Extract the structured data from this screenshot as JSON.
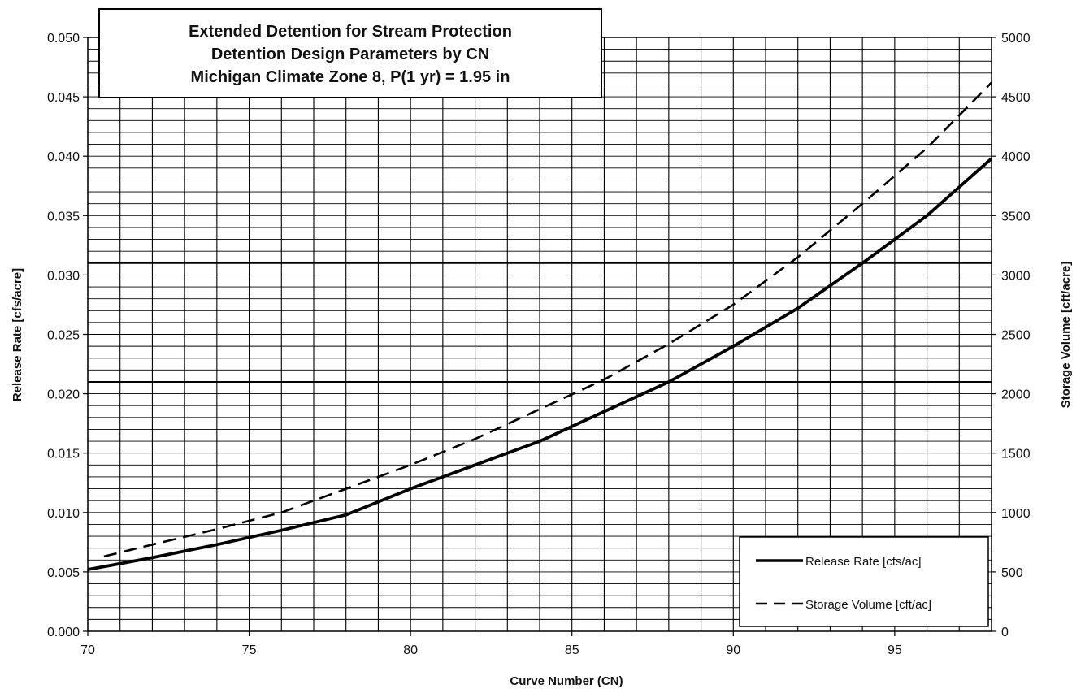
{
  "chart_data": {
    "type": "line",
    "title_lines": [
      "Extended Detention for Stream Protection",
      "Detention Design Parameters by CN",
      "Michigan Climate Zone 8, P(1 yr) = 1.95 in"
    ],
    "xlabel": "Curve Number (CN)",
    "ylabel_left": "Release Rate [cfs/acre]",
    "ylabel_right": "Storage Volume [cft/acre]",
    "xlim": [
      70,
      98
    ],
    "ylim_left": [
      0,
      0.05
    ],
    "ylim_right": [
      0,
      5000
    ],
    "x_ticks": [
      "70",
      "75",
      "80",
      "85",
      "90",
      "95"
    ],
    "y_left_ticks": [
      "0.000",
      "0.005",
      "0.010",
      "0.015",
      "0.020",
      "0.025",
      "0.030",
      "0.035",
      "0.040",
      "0.045",
      "0.050"
    ],
    "y_right_ticks": [
      "0",
      "500",
      "1000",
      "1500",
      "2000",
      "2500",
      "3000",
      "3500",
      "4000",
      "4500",
      "5000"
    ],
    "grid": true,
    "legend_position": "bottom-right",
    "series": [
      {
        "name": "Release Rate [cfs/ac]",
        "axis": "left",
        "style": "solid",
        "color": "#000000",
        "x": [
          70,
          72,
          74,
          76,
          78,
          80,
          82,
          84,
          86,
          88,
          90,
          92,
          94,
          96,
          98
        ],
        "y": [
          0.0052,
          0.0062,
          0.0073,
          0.0085,
          0.0098,
          0.012,
          0.014,
          0.016,
          0.0185,
          0.021,
          0.024,
          0.0272,
          0.031,
          0.035,
          0.0398
        ]
      },
      {
        "name": "Storage Volume [cft/ac]",
        "axis": "right",
        "style": "dashed",
        "color": "#000000",
        "x": [
          70.5,
          72,
          74,
          76,
          78,
          80,
          82,
          84,
          86,
          88,
          90,
          92,
          94,
          96,
          98
        ],
        "y": [
          630,
          730,
          860,
          1000,
          1200,
          1400,
          1620,
          1870,
          2120,
          2420,
          2750,
          3150,
          3600,
          4070,
          4620
        ]
      }
    ]
  }
}
